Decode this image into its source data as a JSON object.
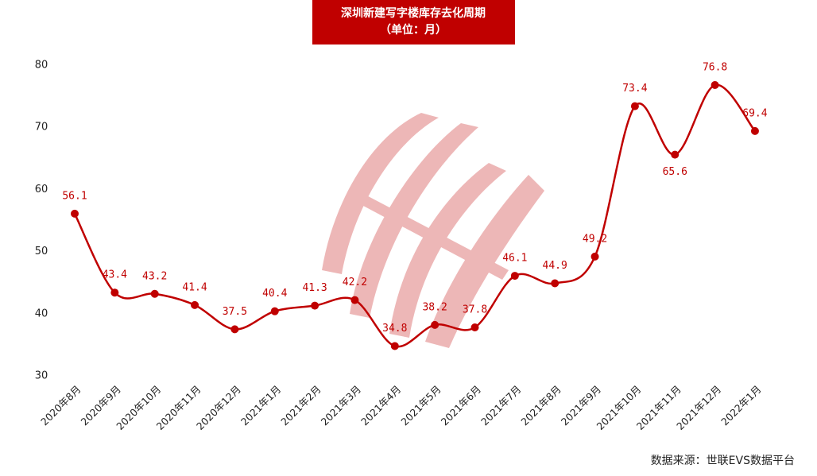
{
  "chart_data": {
    "type": "line",
    "title": "深圳新建写字楼库存去化周期",
    "subtitle": "（单位：月）",
    "source": "数据来源：世联EVS数据平台",
    "categories": [
      "2020年8月",
      "2020年9月",
      "2020年10月",
      "2020年11月",
      "2020年12月",
      "2021年1月",
      "2021年2月",
      "2021年3月",
      "2021年4月",
      "2021年5月",
      "2021年6月",
      "2021年7月",
      "2021年8月",
      "2021年9月",
      "2021年10月",
      "2021年11月",
      "2021年12月",
      "2022年1月"
    ],
    "values": [
      56.1,
      43.4,
      43.2,
      41.4,
      37.5,
      40.4,
      41.3,
      42.2,
      34.8,
      38.2,
      37.8,
      46.1,
      44.9,
      49.2,
      73.4,
      65.6,
      76.8,
      69.4
    ],
    "color": "#c00000",
    "ylim": [
      30,
      80
    ],
    "yticks": [
      30,
      40,
      50,
      60,
      70,
      80
    ],
    "grid": false
  }
}
